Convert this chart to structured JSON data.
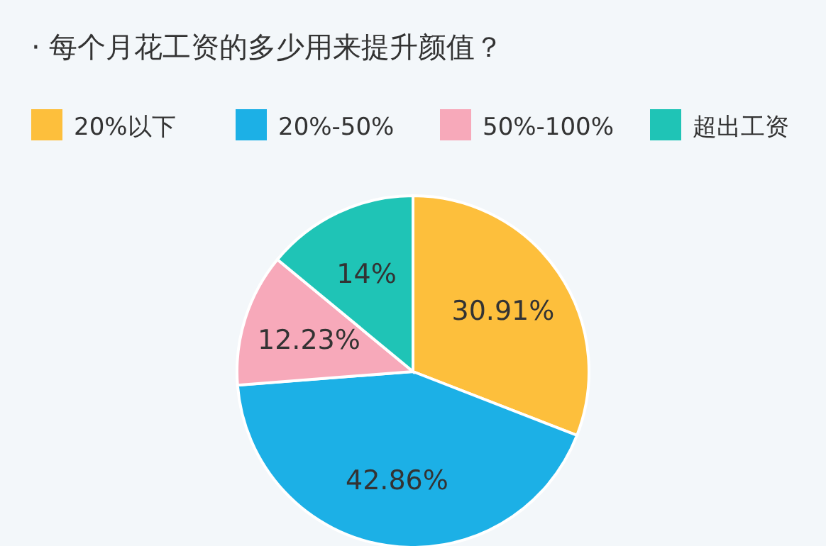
{
  "chart_data": {
    "type": "pie",
    "title": "· 每个月花工资的多少用来提升颜值？",
    "categories": [
      "20%以下",
      "20%-50%",
      "50%-100%",
      "超出工资"
    ],
    "values": [
      30.91,
      42.86,
      12.23,
      14
    ],
    "colors": [
      "#fdbf3c",
      "#1cb0e6",
      "#f7a9ba",
      "#1fc4b6"
    ],
    "value_labels": [
      "30.91%",
      "42.86%",
      "12.23%",
      "14%"
    ],
    "legend": "top"
  }
}
